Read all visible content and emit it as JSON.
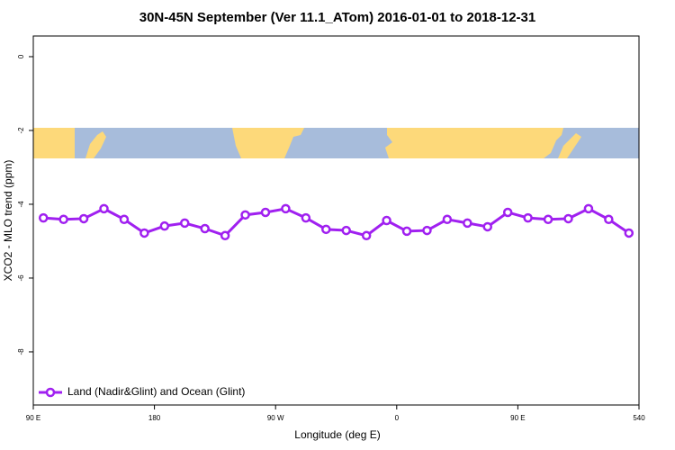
{
  "chart_data": {
    "type": "line",
    "title": "30N-45N September (Ver 11.1_ATom)   2016-01-01 to 2018-12-31",
    "x_label": "Longitude (deg E)",
    "y_label": "XCO2 - MLO trend (ppm)",
    "x": [
      97.5,
      112.5,
      127.5,
      142.5,
      157.5,
      172.5,
      187.5,
      202.5,
      217.5,
      232.5,
      247.5,
      262.5,
      277.5,
      292.5,
      307.5,
      322.5,
      337.5,
      352.5,
      367.5,
      382.5,
      397.5,
      412.5,
      427.5,
      442.5,
      457.5,
      472.5,
      487.5,
      502.5,
      517.5,
      532.5
    ],
    "series": [
      {
        "name": "Land (Nadir&Glint) and Ocean (Glint)",
        "color": "#a020f0",
        "values": [
          -4.37,
          -4.41,
          -4.39,
          -4.12,
          -4.41,
          -4.78,
          -4.59,
          -4.51,
          -4.66,
          -4.85,
          -4.29,
          -4.22,
          -4.12,
          -4.37,
          -4.68,
          -4.71,
          -4.85,
          -4.44,
          -4.73,
          -4.71,
          -4.41,
          -4.51,
          -4.61,
          -4.22,
          -4.37,
          -4.41,
          -4.39,
          -4.12,
          -4.41,
          -4.78
        ]
      }
    ],
    "xlim": [
      90,
      540
    ],
    "xticks": [
      {
        "value": 90,
        "label": "90 E"
      },
      180,
      {
        "value": 270,
        "label": "90 W"
      },
      {
        "value": 360,
        "label": "0"
      },
      {
        "value": 450,
        "label": "90 E"
      },
      540
    ],
    "ylim": [
      -9.44,
      0.56
    ],
    "yticks": [
      0,
      -2,
      -4,
      -6,
      -8
    ],
    "legend": "bottom-left"
  }
}
